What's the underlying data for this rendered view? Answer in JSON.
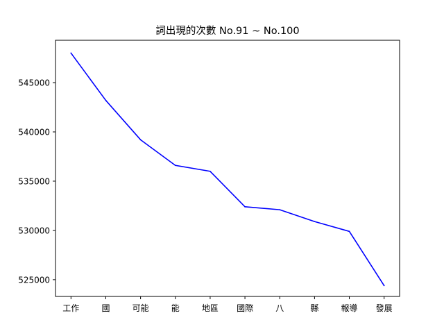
{
  "chart_data": {
    "type": "line",
    "title": "詞出現的次數 No.91 ~ No.100",
    "xlabel": "",
    "ylabel": "",
    "categories": [
      "工作",
      "國",
      "可能",
      "能",
      "地區",
      "國際",
      "八",
      "縣",
      "報導",
      "發展"
    ],
    "series": [
      {
        "color": "#0000ff",
        "values": [
          548000,
          543200,
          539200,
          536600,
          536000,
          532400,
          532100,
          530900,
          529900,
          524400
        ]
      }
    ],
    "ylim": [
      523300,
      549300
    ],
    "yticks": [
      "525000",
      "530000",
      "535000",
      "540000",
      "545000"
    ],
    "grid": false,
    "legend": "none"
  }
}
